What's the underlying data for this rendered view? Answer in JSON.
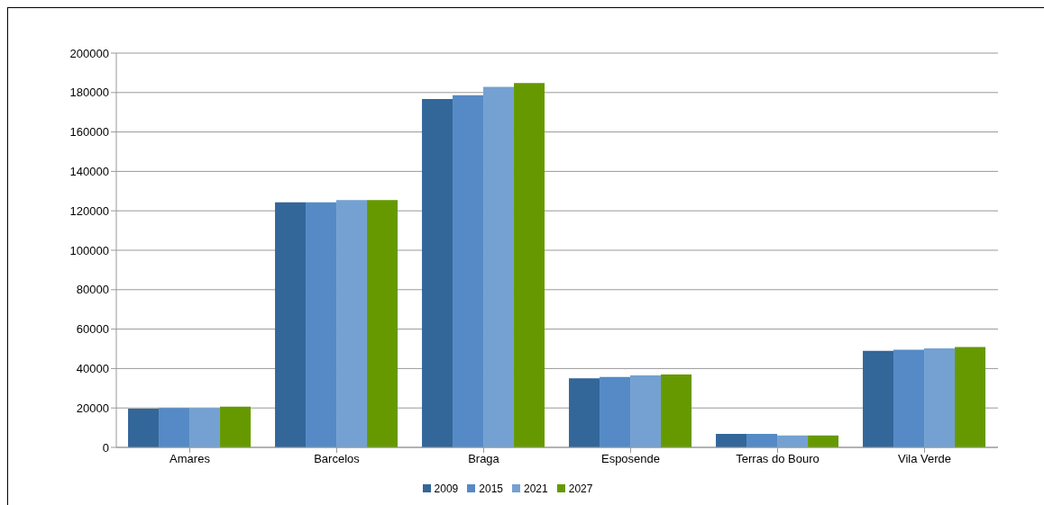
{
  "chart_data": {
    "type": "bar",
    "categories": [
      "Amares",
      "Barcelos",
      "Braga",
      "Esposende",
      "Terras do Bouro",
      "Vila Verde"
    ],
    "series": [
      {
        "name": "2009",
        "color": "#336699",
        "values": [
          19600,
          124300,
          176700,
          35100,
          6800,
          49000
        ]
      },
      {
        "name": "2015",
        "color": "#558ac6",
        "values": [
          20000,
          124300,
          178600,
          35700,
          6800,
          49600
        ]
      },
      {
        "name": "2021",
        "color": "#74a1d2",
        "values": [
          20000,
          125400,
          182900,
          36500,
          6100,
          50200
        ]
      },
      {
        "name": "2027",
        "color": "#669900",
        "values": [
          20700,
          125400,
          184800,
          37000,
          6100,
          50900
        ]
      }
    ],
    "ylim": [
      0,
      200000
    ],
    "yticks": [
      0,
      20000,
      40000,
      60000,
      80000,
      100000,
      120000,
      140000,
      160000,
      180000,
      200000
    ],
    "grid": "y",
    "legend": "bottom"
  }
}
